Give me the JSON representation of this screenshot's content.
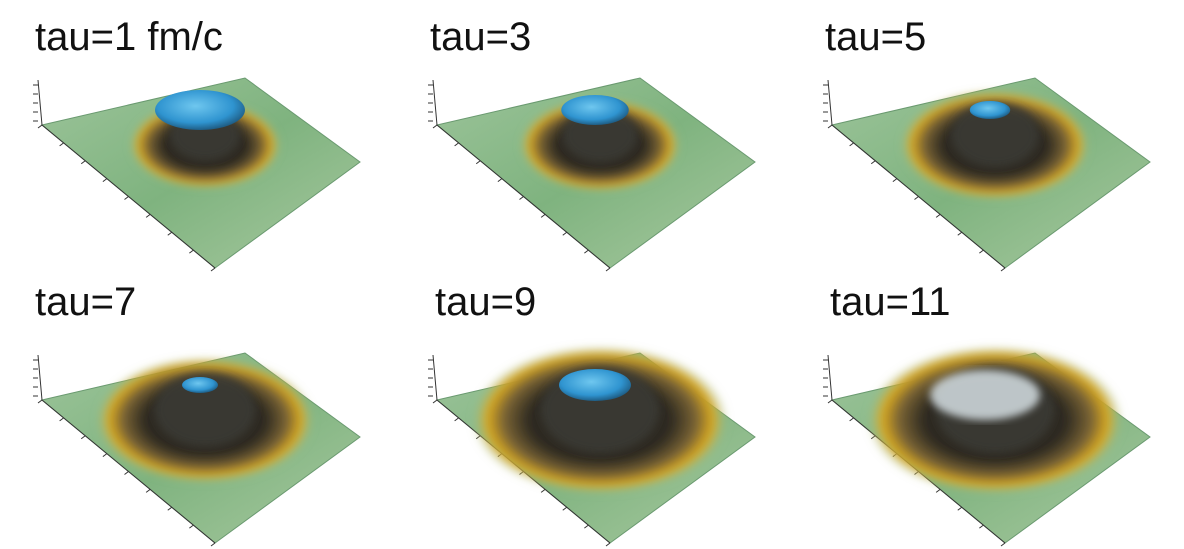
{
  "panels": [
    {
      "label": "tau=1 fm/c"
    },
    {
      "label": "tau=3"
    },
    {
      "label": "tau=5"
    },
    {
      "label": "tau=7"
    },
    {
      "label": "tau=9"
    },
    {
      "label": "tau=11"
    }
  ]
}
